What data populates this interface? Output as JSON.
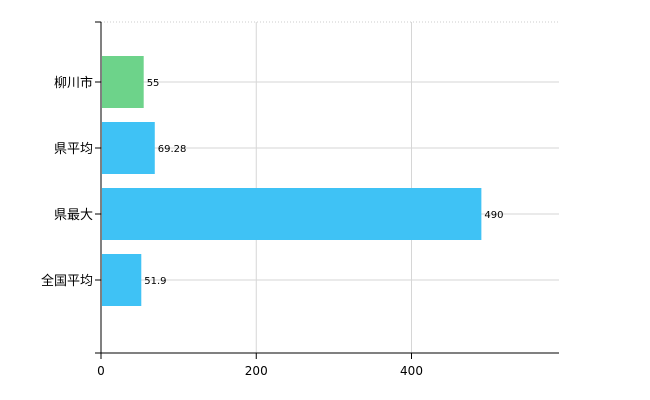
{
  "chart_data": {
    "type": "bar",
    "orientation": "horizontal",
    "title": "",
    "xlabel": "",
    "ylabel": "",
    "categories": [
      "柳川市",
      "県平均",
      "県最大",
      "全国平均"
    ],
    "values": [
      55,
      69.28,
      490,
      51.9
    ],
    "value_labels": [
      "55",
      "69.28",
      "490",
      "51.9"
    ],
    "bar_colors": [
      "#6dd38a",
      "#3fc2f5",
      "#3fc2f5",
      "#3fc2f5"
    ],
    "xlim": [
      0,
      590
    ],
    "xticks": [
      0,
      200,
      400
    ],
    "xtick_labels": [
      "0",
      "200",
      "400"
    ],
    "grid": true,
    "legend": "none"
  }
}
